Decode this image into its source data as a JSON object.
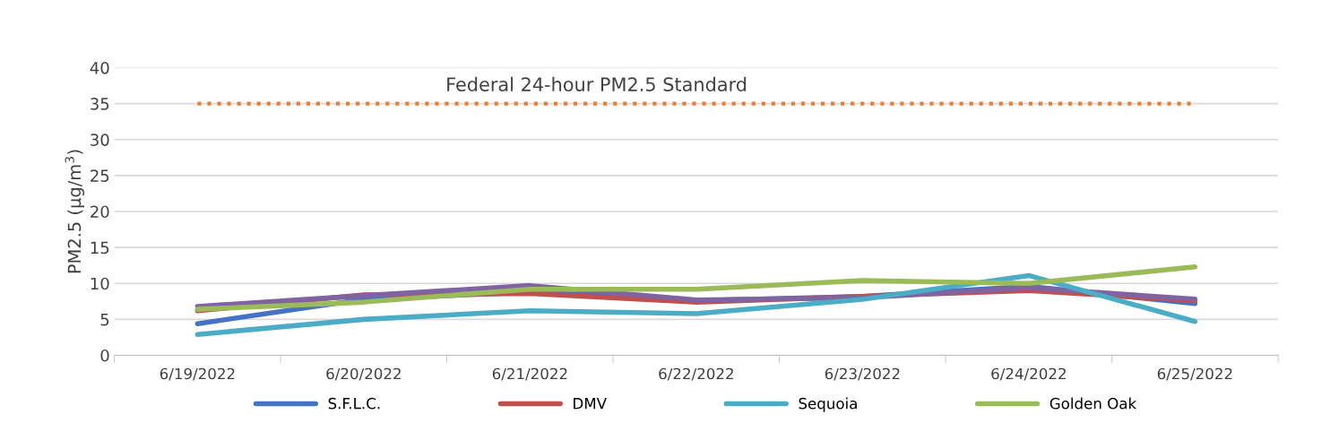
{
  "chart_data": {
    "type": "line",
    "ylabel": "PM2.5 (µg/m$^{3}$)",
    "categories": [
      "6/19/2022",
      "6/20/2022",
      "6/21/2022",
      "6/22/2022",
      "6/23/2022",
      "6/24/2022",
      "6/25/2022"
    ],
    "series": [
      {
        "name": "S.F.L.C.",
        "color": "#4472c4",
        "values": [
          4.4,
          7.8,
          8.8,
          7.6,
          8.2,
          9.6,
          7.2
        ]
      },
      {
        "name": "DMV",
        "color": "#c0504d",
        "values": [
          6.2,
          8.4,
          8.6,
          7.4,
          8.2,
          9.0,
          7.6
        ]
      },
      {
        "color": "#8064a2",
        "values": [
          6.8,
          8.3,
          9.7,
          7.7,
          8.0,
          9.4,
          7.8
        ]
      },
      {
        "name": "Sequoia",
        "color": "#4bacc6",
        "values": [
          2.9,
          5.0,
          6.2,
          5.8,
          7.8,
          11.1,
          4.7
        ]
      },
      {
        "name": "Golden Oak",
        "color": "#9bbb59",
        "values": [
          6.4,
          7.4,
          9.2,
          9.2,
          10.4,
          10.0,
          12.3
        ]
      }
    ],
    "ref_lines": [
      {
        "axis": "y",
        "value": 35,
        "label": "Federal 24-hour PM2.5 Standard",
        "color": "#ed7d31",
        "line_style": "dotted"
      }
    ],
    "ylim": [
      0,
      40
    ],
    "yticks": [
      0,
      5,
      10,
      15,
      20,
      25,
      30,
      35,
      40
    ],
    "grid": "y",
    "legend": "bottom",
    "marker": "none",
    "line_style": "solid"
  }
}
